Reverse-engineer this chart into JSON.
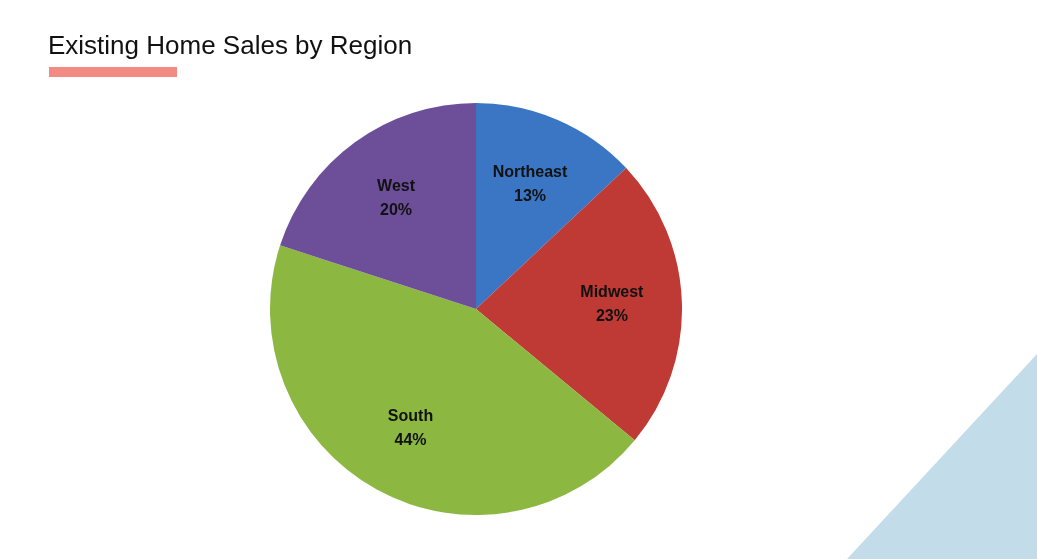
{
  "chart_data": {
    "type": "pie",
    "title": "Existing Home Sales by Region",
    "categories": [
      "Northeast",
      "Midwest",
      "South",
      "West"
    ],
    "values": [
      13,
      23,
      44,
      20
    ],
    "value_labels": [
      "13%",
      "23%",
      "44%",
      "20%"
    ],
    "colors": [
      "#3a76c4",
      "#bf3a35",
      "#8cb841",
      "#6c4f98"
    ],
    "legend": false
  }
}
